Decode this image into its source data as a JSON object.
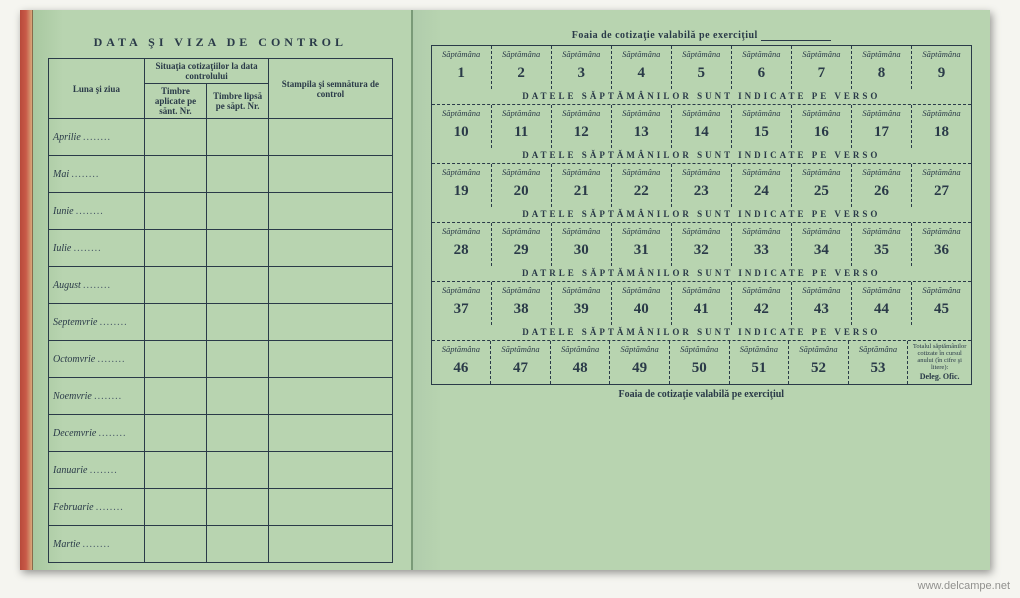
{
  "colors": {
    "paper": "#b8d4b0",
    "paper_shadow": "#a8c8a0",
    "ink": "#2a3a48",
    "spine1": "#b84a3a",
    "spine2": "#c85a48",
    "background": "#f5f5f0"
  },
  "left": {
    "title": "DATA ŞI VIZA DE CONTROL",
    "headers": {
      "col1": "Luna şi ziua",
      "group": "Situaţia cotizaţiilor la data controlului",
      "col2": "Timbre aplicate pe sănt. Nr.",
      "col3": "Timbre lipsă pe săpt. Nr.",
      "col4": "Stampila şi semnătura de control"
    },
    "months": [
      "Aprilie",
      "Mai",
      "Iunie",
      "Iulie",
      "August",
      "Septemvrie",
      "Octomvrie",
      "Noemvrie",
      "Decemvrie",
      "Ianuarie",
      "Februarie",
      "Martie"
    ]
  },
  "right": {
    "top_title_prefix": "Foaia de cotizaţie valabilă pe exerciţiul",
    "week_label": "Săptămâna",
    "band_note": "DATELE SĂPTĂMÂNILOR SUNT INDICATE PE VERSO",
    "band_note_alt": "DATRLE SĂPTĂMÂNILOR SUNT INDICATE PE VERSO",
    "bands": [
      [
        1,
        2,
        3,
        4,
        5,
        6,
        7,
        8,
        9
      ],
      [
        10,
        11,
        12,
        13,
        14,
        15,
        16,
        17,
        18
      ],
      [
        19,
        20,
        21,
        22,
        23,
        24,
        25,
        26,
        27
      ],
      [
        28,
        29,
        30,
        31,
        32,
        33,
        34,
        35,
        36
      ],
      [
        37,
        38,
        39,
        40,
        41,
        42,
        43,
        44,
        45
      ]
    ],
    "last_band": [
      46,
      47,
      48,
      49,
      50,
      51,
      52,
      53
    ],
    "final_cell_top": "Totalul săptămânilor cotizate în cursul anului (în cifre şi litere):",
    "final_cell_bottom": "Deleg. Ofic.",
    "bottom_title": "Foaia de cotizaţie valabilă pe exerciţiul"
  },
  "watermark": "www.delcampe.net"
}
